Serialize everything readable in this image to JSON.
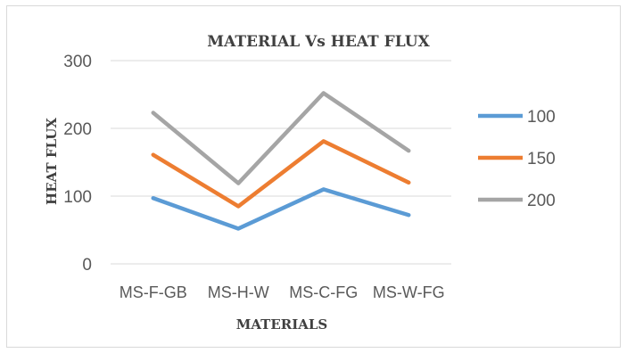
{
  "chart_data": {
    "type": "line",
    "title": "MATERIAL Vs HEAT FLUX",
    "xlabel": "MATERIALS",
    "ylabel": "HEAT FLUX",
    "categories": [
      "MS-F-GB",
      "MS-H-W",
      "MS-C-FG",
      "MS-W-FG"
    ],
    "ylim": [
      0,
      300
    ],
    "yticks": [
      0,
      100,
      200,
      300
    ],
    "grid": true,
    "legend_position": "right",
    "series": [
      {
        "name": "100",
        "color": "#5b9bd5",
        "values": [
          97,
          52,
          110,
          72
        ]
      },
      {
        "name": "150",
        "color": "#ed7d31",
        "values": [
          161,
          85,
          181,
          120
        ]
      },
      {
        "name": "200",
        "color": "#a5a5a5",
        "values": [
          223,
          119,
          252,
          167
        ]
      }
    ]
  }
}
